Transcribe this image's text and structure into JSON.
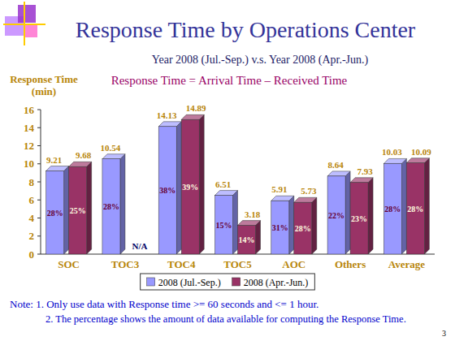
{
  "chart_data": {
    "type": "bar",
    "title": "Response Time by Operations Center",
    "subtitle": "Year 2008 (Jul.-Sep.) v.s. Year 2008 (Apr.-Jun.)",
    "formula": "Response Time = Arrival Time – Received Time",
    "y_label": "Response Time (min)",
    "categories": [
      "SOC",
      "TOC3",
      "TOC4",
      "TOC5",
      "AOC",
      "Others",
      "Average"
    ],
    "series": [
      {
        "name": "2008 (Jul.-Sep.)",
        "color": "#9999ff",
        "values": [
          9.21,
          10.54,
          14.13,
          6.51,
          5.91,
          8.64,
          10.03
        ],
        "available_labels": [
          "28%",
          "28%",
          "38%",
          "15%",
          "31%",
          "22%",
          "28%"
        ]
      },
      {
        "name": "2008 (Apr.-Jun.)",
        "color": "#993366",
        "values": [
          9.68,
          null,
          14.89,
          3.18,
          5.73,
          7.93,
          10.09
        ],
        "value_labels": [
          "9.68",
          "N/A",
          "14.89",
          "3.18",
          "5.73",
          "7.93",
          "10.09"
        ],
        "available_labels": [
          "25%",
          null,
          "39%",
          "14%",
          "28%",
          "23%",
          "28%"
        ]
      }
    ],
    "ylim": [
      0,
      16
    ],
    "yticks": [
      0,
      2,
      4,
      6,
      8,
      10,
      12,
      14,
      16
    ],
    "grid": false,
    "legend": "bottom",
    "data_labels": true,
    "notes": [
      "Note: 1. Only use data with Response time >= 60 seconds and <= 1 hour.",
      "2. The percentage shows the amount of data available for computing the Response Time."
    ],
    "page_number": 3
  }
}
